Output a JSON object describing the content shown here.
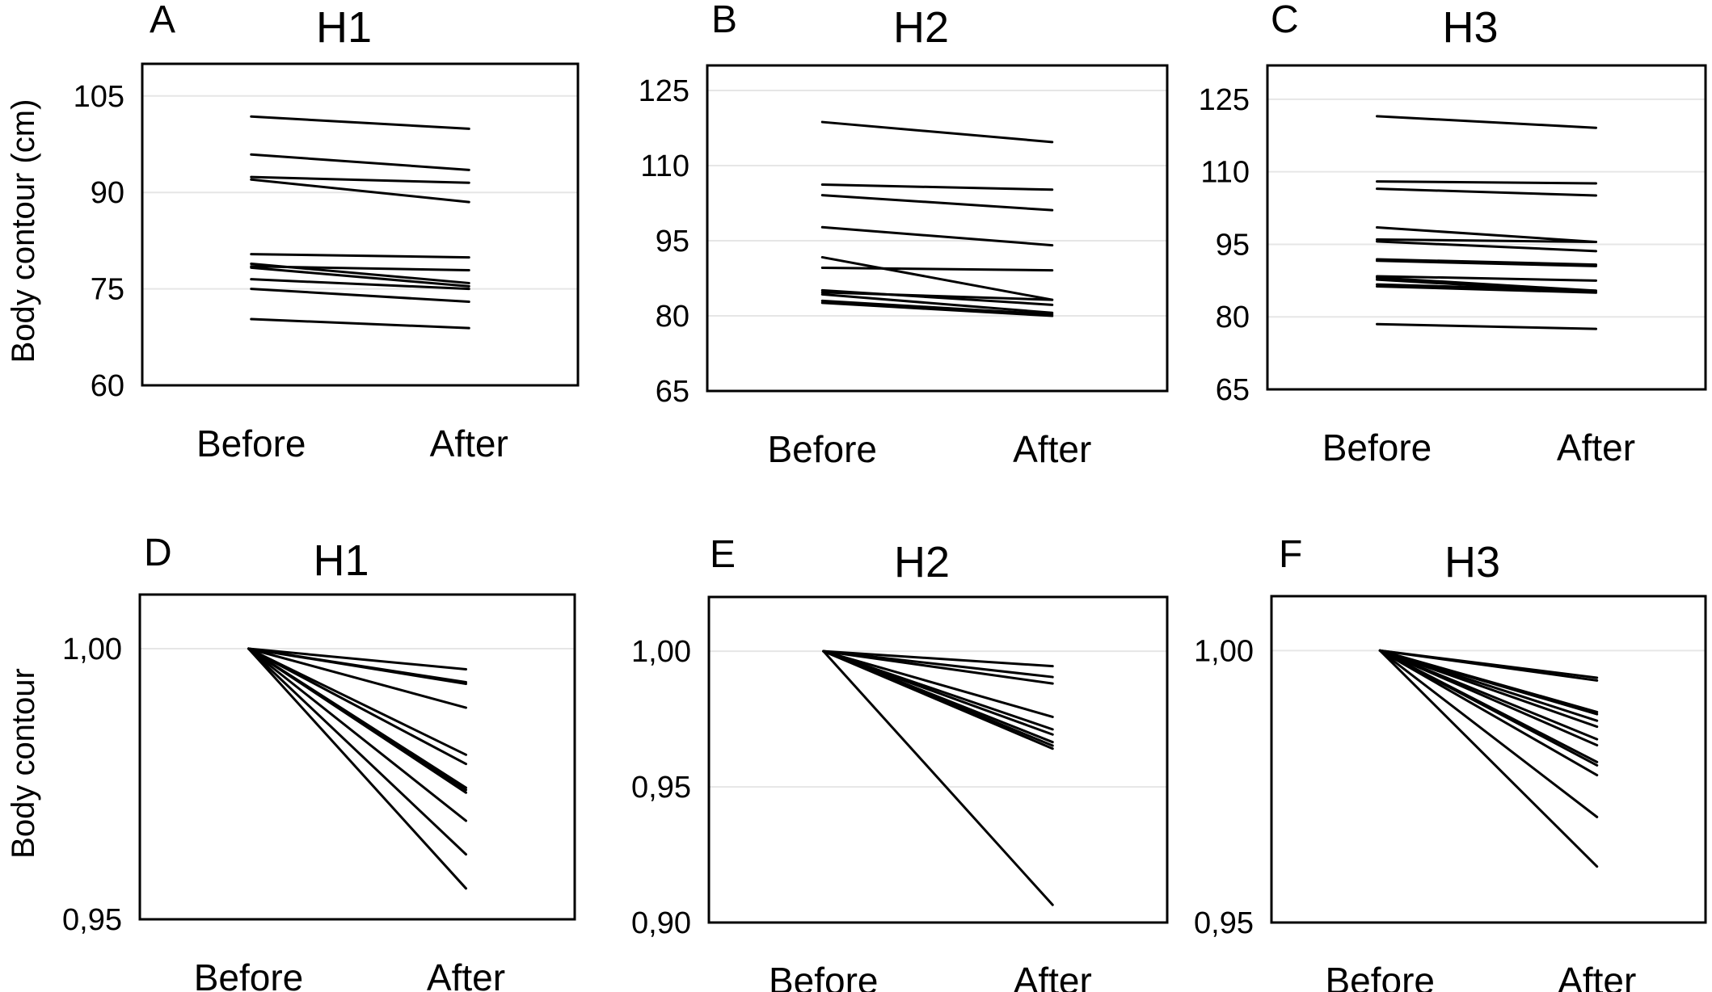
{
  "colors": {
    "line": "#000000",
    "grid": "#e6e6e6",
    "frame": "#000000"
  },
  "chart_data": [
    {
      "panel": "A",
      "title": "H1",
      "type": "line",
      "ylabel": "Body contour (cm)",
      "categories": [
        "Before",
        "After"
      ],
      "ylim": [
        60,
        110
      ],
      "yticks": [
        60,
        75,
        90,
        105
      ],
      "ytick_labels": [
        "60",
        "75",
        "90",
        "105"
      ],
      "grid": true,
      "series": [
        [
          101.8,
          99.9
        ],
        [
          95.9,
          93.5
        ],
        [
          92.4,
          91.5
        ],
        [
          92.0,
          88.5
        ],
        [
          80.4,
          79.9
        ],
        [
          78.9,
          75.9
        ],
        [
          78.5,
          77.9
        ],
        [
          78.3,
          75.4
        ],
        [
          76.5,
          75.0
        ],
        [
          75.0,
          73.0
        ],
        [
          70.3,
          68.9
        ]
      ]
    },
    {
      "panel": "B",
      "title": "H2",
      "type": "line",
      "ylabel": "",
      "categories": [
        "Before",
        "After"
      ],
      "ylim": [
        65,
        130
      ],
      "yticks": [
        65,
        80,
        95,
        110,
        125
      ],
      "ytick_labels": [
        "65",
        "80",
        "95",
        "110",
        "125"
      ],
      "grid": true,
      "series": [
        [
          118.7,
          114.7
        ],
        [
          106.2,
          105.2
        ],
        [
          104.1,
          101.1
        ],
        [
          97.7,
          94.1
        ],
        [
          91.7,
          83.2
        ],
        [
          89.6,
          89.1
        ],
        [
          85.1,
          82.2
        ],
        [
          84.7,
          83.2
        ],
        [
          84.3,
          80.6
        ],
        [
          83.0,
          80.3
        ],
        [
          82.6,
          80.0
        ]
      ]
    },
    {
      "panel": "C",
      "title": "H3",
      "type": "line",
      "ylabel": "",
      "categories": [
        "Before",
        "After"
      ],
      "ylim": [
        65,
        132
      ],
      "yticks": [
        65,
        80,
        95,
        110,
        125
      ],
      "ytick_labels": [
        "65",
        "80",
        "95",
        "110",
        "125"
      ],
      "grid": true,
      "series": [
        [
          121.5,
          119.1
        ],
        [
          108.0,
          107.6
        ],
        [
          106.5,
          105.1
        ],
        [
          98.5,
          95.5
        ],
        [
          96.0,
          95.5
        ],
        [
          95.6,
          93.6
        ],
        [
          91.9,
          90.8
        ],
        [
          91.6,
          90.5
        ],
        [
          88.4,
          87.5
        ],
        [
          88.1,
          85.4
        ],
        [
          87.7,
          85.1
        ],
        [
          86.7,
          85.4
        ],
        [
          86.3,
          85.0
        ],
        [
          78.5,
          77.5
        ]
      ]
    },
    {
      "panel": "D",
      "title": "H1",
      "type": "line",
      "ylabel": "Body contour",
      "categories": [
        "Before",
        "After"
      ],
      "ylim": [
        0.95,
        1.01
      ],
      "yticks": [
        0.95,
        1.0
      ],
      "ytick_labels": [
        "0,95",
        "1,00"
      ],
      "grid": true,
      "series": [
        [
          1,
          0.9962
        ],
        [
          1,
          0.9938
        ],
        [
          1,
          0.9935
        ],
        [
          1,
          0.9891
        ],
        [
          1,
          0.9804
        ],
        [
          1,
          0.9787
        ],
        [
          1,
          0.9743
        ],
        [
          1,
          0.9739
        ],
        [
          1,
          0.9734
        ],
        [
          1,
          0.9682
        ],
        [
          1,
          0.962
        ],
        [
          1,
          0.9557
        ]
      ]
    },
    {
      "panel": "E",
      "title": "H2",
      "type": "line",
      "ylabel": "",
      "categories": [
        "Before",
        "After"
      ],
      "ylim": [
        0.9,
        1.02
      ],
      "yticks": [
        0.9,
        0.95,
        1.0
      ],
      "ytick_labels": [
        "0,90",
        "0,95",
        "1,00"
      ],
      "grid": true,
      "series": [
        [
          1,
          0.9945
        ],
        [
          1,
          0.9905
        ],
        [
          1,
          0.9881
        ],
        [
          1,
          0.9758
        ],
        [
          1,
          0.9712
        ],
        [
          1,
          0.9693
        ],
        [
          1,
          0.9665
        ],
        [
          1,
          0.9652
        ],
        [
          1,
          0.9641
        ],
        [
          1,
          0.9065
        ]
      ]
    },
    {
      "panel": "F",
      "title": "H3",
      "type": "line",
      "ylabel": "",
      "categories": [
        "Before",
        "After"
      ],
      "ylim": [
        0.95,
        1.01
      ],
      "yticks": [
        0.95,
        1.0
      ],
      "ytick_labels": [
        "0,95",
        "1,00"
      ],
      "grid": true,
      "series": [
        [
          1,
          0.995
        ],
        [
          1,
          0.9945
        ],
        [
          1,
          0.9887
        ],
        [
          1,
          0.9883
        ],
        [
          1,
          0.9871
        ],
        [
          1,
          0.986
        ],
        [
          1,
          0.9837
        ],
        [
          1,
          0.9826
        ],
        [
          1,
          0.9795
        ],
        [
          1,
          0.9789
        ],
        [
          1,
          0.9771
        ],
        [
          1,
          0.9694
        ],
        [
          1,
          0.9603
        ]
      ]
    }
  ]
}
